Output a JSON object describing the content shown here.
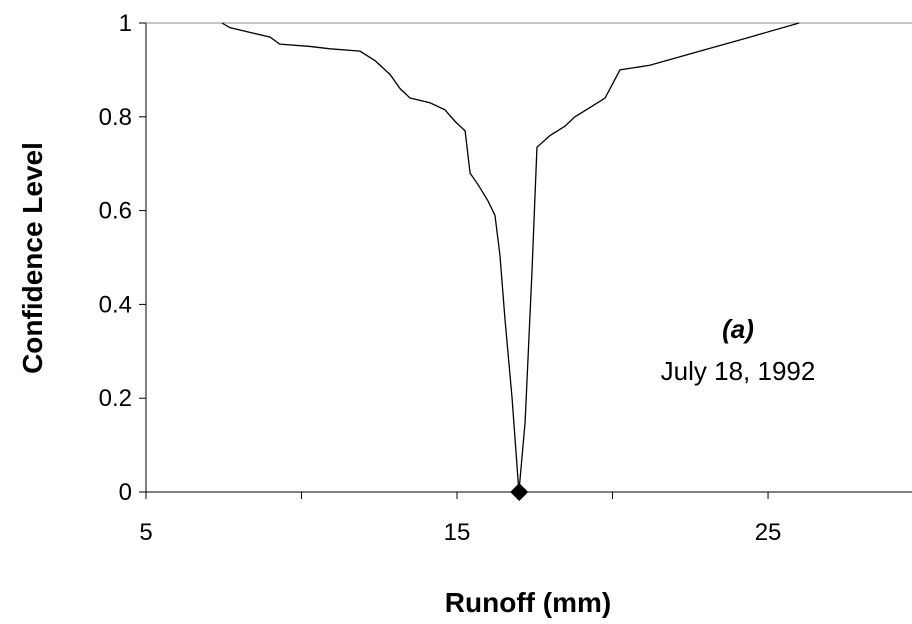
{
  "chart_data": {
    "type": "line",
    "xlabel": "Runoff (mm)",
    "ylabel": "Confidence Level",
    "annotations": [
      "(a)",
      "July 18, 1992"
    ],
    "xlim": [
      5,
      29.5
    ],
    "ylim": [
      0,
      1
    ],
    "xticks": [
      5,
      15,
      25
    ],
    "xminor_ticks": [
      10,
      20
    ],
    "yticks": [
      0,
      0.2,
      0.4,
      0.6,
      0.8,
      1
    ],
    "series": [
      {
        "type": "line",
        "color": "#000000",
        "x": [
          7.44,
          7.7,
          8.34,
          8.99,
          9.3,
          10.27,
          10.92,
          11.88,
          12.36,
          12.85,
          13.17,
          13.49,
          14.13,
          14.61,
          14.94,
          15.26,
          15.42,
          15.68,
          16.0,
          16.22,
          16.38,
          16.54,
          16.77,
          16.99,
          17.19,
          17.41,
          17.57,
          17.99,
          18.47,
          18.79,
          19.28,
          19.76,
          20.24,
          21.2,
          22.81,
          24.42,
          26.0
        ],
        "values": [
          1,
          0.99,
          0.98,
          0.97,
          0.955,
          0.95,
          0.945,
          0.94,
          0.92,
          0.89,
          0.86,
          0.84,
          0.83,
          0.815,
          0.79,
          0.77,
          0.68,
          0.655,
          0.62,
          0.59,
          0.505,
          0.37,
          0.2,
          0,
          0.15,
          0.47,
          0.735,
          0.76,
          0.78,
          0.8,
          0.82,
          0.84,
          0.9,
          0.91,
          0.94,
          0.97,
          1
        ]
      },
      {
        "type": "scatter",
        "color": "#000000",
        "marker": "diamond",
        "x": [
          17
        ],
        "values": [
          0
        ]
      }
    ]
  }
}
